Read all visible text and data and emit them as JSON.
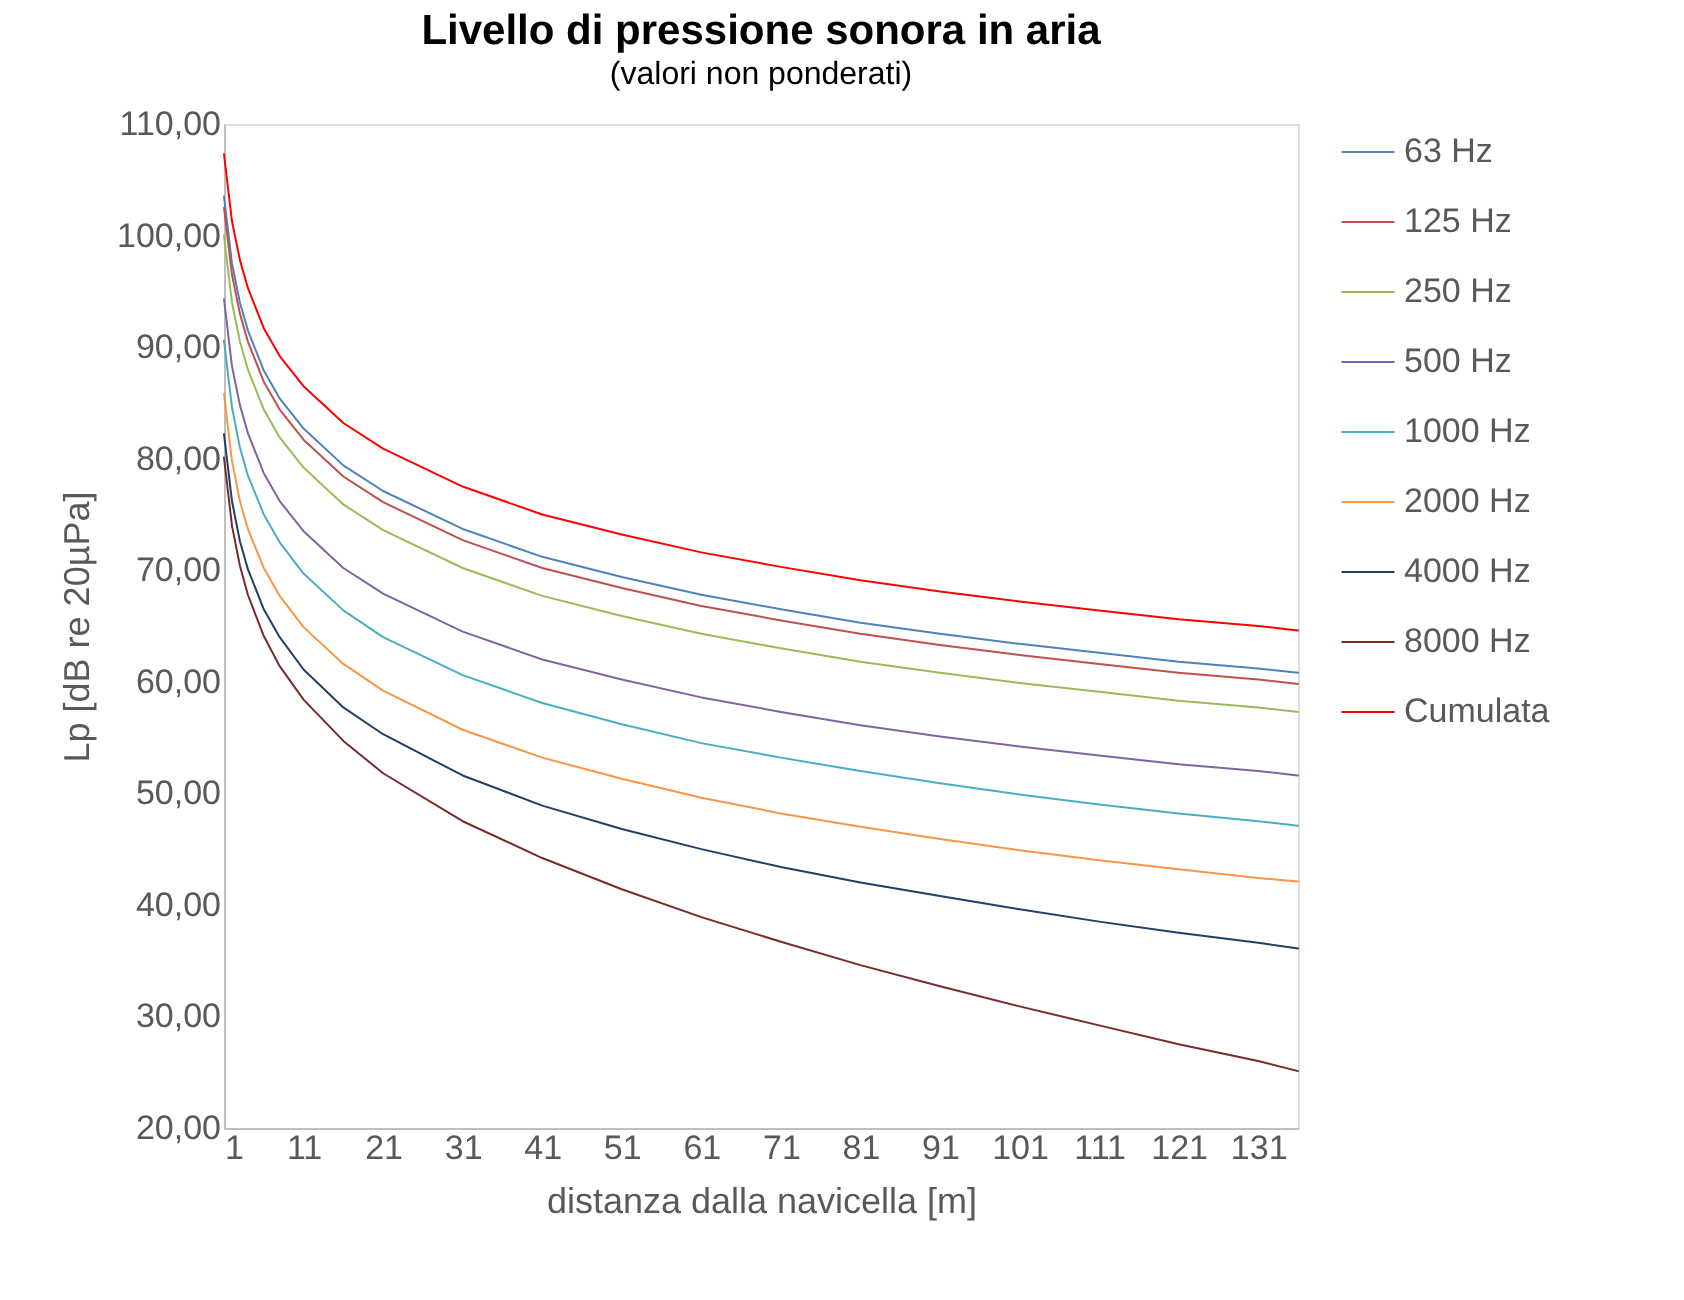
{
  "chart_data": {
    "type": "line",
    "title": "Livello di pressione sonora in aria",
    "subtitle": "(valori non ponderati)",
    "xlabel": "distanza dalla navicella [m]",
    "ylabel": "Lp [dB re 20µPa]",
    "x": [
      1,
      2,
      3,
      4,
      6,
      8,
      11,
      16,
      21,
      31,
      41,
      51,
      61,
      71,
      81,
      91,
      101,
      111,
      121,
      131,
      136
    ],
    "xlim": [
      1,
      136
    ],
    "xticks": [
      1,
      11,
      21,
      31,
      41,
      51,
      61,
      71,
      81,
      91,
      101,
      111,
      121,
      131
    ],
    "ylim": [
      20,
      110
    ],
    "yticks": [
      {
        "value": 20,
        "label": "20,00"
      },
      {
        "value": 30,
        "label": "30,00"
      },
      {
        "value": 40,
        "label": "40,00"
      },
      {
        "value": 50,
        "label": "50,00"
      },
      {
        "value": 60,
        "label": "60,00"
      },
      {
        "value": 70,
        "label": "70,00"
      },
      {
        "value": 80,
        "label": "80,00"
      },
      {
        "value": 90,
        "label": "90,00"
      },
      {
        "value": 100,
        "label": "100,00"
      },
      {
        "value": 110,
        "label": "110,00"
      }
    ],
    "grid": false,
    "legend": "right",
    "marker": "none",
    "line_style": "solid",
    "series": [
      {
        "name": "63 Hz",
        "color": "#4f81bd",
        "values": [
          103.5,
          97.5,
          94.0,
          91.5,
          87.9,
          85.4,
          82.7,
          79.4,
          77.1,
          73.7,
          71.2,
          69.4,
          67.8,
          66.5,
          65.3,
          64.3,
          63.4,
          62.6,
          61.8,
          61.2,
          60.8
        ]
      },
      {
        "name": "125 Hz",
        "color": "#c0504d",
        "values": [
          102.5,
          96.5,
          93.0,
          90.5,
          86.9,
          84.4,
          81.7,
          78.4,
          76.1,
          72.7,
          70.2,
          68.4,
          66.8,
          65.5,
          64.3,
          63.3,
          62.4,
          61.6,
          60.8,
          60.2,
          59.8
        ]
      },
      {
        "name": "250 Hz",
        "color": "#9bbb59",
        "values": [
          100.0,
          94.0,
          90.5,
          88.0,
          84.4,
          81.9,
          79.2,
          75.9,
          73.6,
          70.2,
          67.7,
          65.9,
          64.3,
          63.0,
          61.8,
          60.8,
          59.9,
          59.1,
          58.3,
          57.7,
          57.3
        ]
      },
      {
        "name": "500 Hz",
        "color": "#8064a2",
        "values": [
          94.3,
          88.3,
          84.8,
          82.3,
          78.7,
          76.2,
          73.5,
          70.2,
          67.9,
          64.5,
          62.0,
          60.2,
          58.6,
          57.3,
          56.1,
          55.1,
          54.2,
          53.4,
          52.6,
          52.0,
          51.6
        ]
      },
      {
        "name": "1000 Hz",
        "color": "#4bacc6",
        "values": [
          90.6,
          84.6,
          81.0,
          78.5,
          75.0,
          72.5,
          69.7,
          66.4,
          64.0,
          60.6,
          58.1,
          56.2,
          54.5,
          53.2,
          52.0,
          50.9,
          49.9,
          49.0,
          48.2,
          47.5,
          47.1
        ]
      },
      {
        "name": "2000 Hz",
        "color": "#f79646",
        "values": [
          85.8,
          79.8,
          76.2,
          73.7,
          70.2,
          67.7,
          64.9,
          61.6,
          59.2,
          55.7,
          53.2,
          51.3,
          49.6,
          48.2,
          47.0,
          45.9,
          44.9,
          44.0,
          43.2,
          42.4,
          42.1
        ]
      },
      {
        "name": "4000 Hz",
        "color": "#1f3f66",
        "values": [
          82.2,
          76.2,
          72.6,
          70.1,
          66.5,
          64.0,
          61.1,
          57.7,
          55.3,
          51.6,
          48.9,
          46.8,
          45.0,
          43.4,
          42.0,
          40.8,
          39.6,
          38.5,
          37.5,
          36.6,
          36.1
        ]
      },
      {
        "name": "8000 Hz",
        "color": "#772c2a",
        "values": [
          80.1,
          74.0,
          70.4,
          67.8,
          64.1,
          61.4,
          58.4,
          54.7,
          51.8,
          47.5,
          44.2,
          41.4,
          38.9,
          36.7,
          34.6,
          32.7,
          30.9,
          29.2,
          27.5,
          26.0,
          25.1
        ]
      },
      {
        "name": "Cumulata",
        "color": "#ff0000",
        "values": [
          107.3,
          101.3,
          97.8,
          95.3,
          91.7,
          89.2,
          86.5,
          83.2,
          80.9,
          77.5,
          75.0,
          73.2,
          71.6,
          70.3,
          69.1,
          68.1,
          67.2,
          66.4,
          65.6,
          65.0,
          64.6
        ]
      }
    ]
  }
}
